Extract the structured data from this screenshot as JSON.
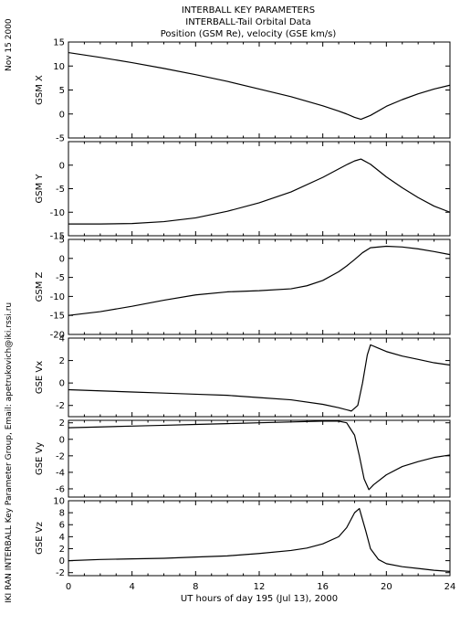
{
  "header": {
    "line1": "INTERBALL KEY PARAMETERS",
    "line2": "INTERBALL-Tail Orbital Data",
    "line3": "Position (GSM Re), velocity (GSE km/s)"
  },
  "side_date": "Nov 15 2000",
  "side_credit": "IKI RAN INTERBALL Key Parameter Group, Email: apetrukovich@iki.rssi.ru",
  "xlabel": "UT hours of day 195 (Jul 13), 2000",
  "colors": {
    "line": "#000000",
    "axis": "#000000",
    "background": "#ffffff"
  },
  "chart_data": [
    {
      "type": "line",
      "ylabel": "GSM X",
      "xlim": [
        0,
        24
      ],
      "ylim": [
        -5,
        15
      ],
      "yticks": [
        -5,
        0,
        5,
        10,
        15
      ],
      "x": [
        0,
        2,
        4,
        6,
        8,
        10,
        12,
        14,
        16,
        17,
        17.5,
        18,
        18.4,
        19,
        20,
        21,
        22,
        23,
        24
      ],
      "y": [
        12.8,
        11.8,
        10.7,
        9.5,
        8.2,
        6.8,
        5.2,
        3.6,
        1.7,
        0.6,
        0.0,
        -0.7,
        -1.1,
        -0.3,
        1.6,
        3.0,
        4.2,
        5.2,
        6.0
      ]
    },
    {
      "type": "line",
      "ylabel": "GSM Y",
      "xlim": [
        0,
        24
      ],
      "ylim": [
        -15,
        5
      ],
      "yticks": [
        -15,
        -10,
        -5,
        0
      ],
      "x": [
        0,
        2,
        4,
        6,
        8,
        10,
        12,
        14,
        16,
        17,
        17.5,
        18,
        18.4,
        19,
        20,
        21,
        22,
        23,
        24
      ],
      "y": [
        -12.5,
        -12.5,
        -12.4,
        -12.0,
        -11.2,
        -9.8,
        -8.0,
        -5.7,
        -2.6,
        -0.8,
        0.1,
        0.9,
        1.3,
        0.2,
        -2.5,
        -4.8,
        -6.9,
        -8.7,
        -10.0
      ]
    },
    {
      "type": "line",
      "ylabel": "GSM Z",
      "xlim": [
        0,
        24
      ],
      "ylim": [
        -20,
        5
      ],
      "yticks": [
        -20,
        -15,
        -10,
        -5,
        0,
        5
      ],
      "x": [
        0,
        2,
        4,
        6,
        8,
        10,
        12,
        14,
        15,
        16,
        17,
        17.5,
        18,
        18.5,
        19,
        20,
        21,
        22,
        23,
        24
      ],
      "y": [
        -15.0,
        -14.0,
        -12.6,
        -11.0,
        -9.6,
        -8.8,
        -8.5,
        -8.0,
        -7.2,
        -5.8,
        -3.5,
        -2.0,
        -0.3,
        1.5,
        2.8,
        3.2,
        3.0,
        2.5,
        1.8,
        1.0
      ]
    },
    {
      "type": "line",
      "ylabel": "GSE Vx",
      "xlim": [
        0,
        24
      ],
      "ylim": [
        -3,
        4
      ],
      "yticks": [
        -2,
        0,
        2,
        4
      ],
      "x": [
        0,
        2,
        4,
        6,
        8,
        10,
        12,
        14,
        16,
        17,
        17.8,
        18.2,
        18.5,
        18.8,
        19.0,
        19.5,
        20,
        21,
        22,
        23,
        24
      ],
      "y": [
        -0.6,
        -0.7,
        -0.8,
        -0.9,
        -1.0,
        -1.1,
        -1.3,
        -1.5,
        -1.9,
        -2.2,
        -2.5,
        -2.0,
        0.0,
        2.5,
        3.4,
        3.1,
        2.8,
        2.4,
        2.1,
        1.8,
        1.6
      ]
    },
    {
      "type": "line",
      "ylabel": "GSE Vy",
      "xlim": [
        0,
        24
      ],
      "ylim": [
        -7,
        2.3
      ],
      "yticks": [
        -6,
        -4,
        -2,
        0,
        2
      ],
      "x": [
        0,
        2,
        4,
        6,
        8,
        10,
        12,
        14,
        16,
        17,
        17.5,
        18,
        18.3,
        18.6,
        18.9,
        19.2,
        20,
        21,
        22,
        23,
        24
      ],
      "y": [
        1.4,
        1.5,
        1.6,
        1.7,
        1.8,
        1.9,
        2.0,
        2.1,
        2.2,
        2.2,
        2.0,
        0.5,
        -2.0,
        -4.8,
        -6.1,
        -5.5,
        -4.3,
        -3.3,
        -2.7,
        -2.2,
        -1.9
      ]
    },
    {
      "type": "line",
      "ylabel": "GSE Vz",
      "xlim": [
        0,
        24
      ],
      "ylim": [
        -2.5,
        10
      ],
      "yticks": [
        -2,
        0,
        2,
        4,
        6,
        8,
        10
      ],
      "x": [
        0,
        2,
        4,
        6,
        8,
        10,
        12,
        14,
        15,
        16,
        17,
        17.5,
        18,
        18.3,
        18.7,
        19,
        19.5,
        20,
        21,
        22,
        23,
        24
      ],
      "y": [
        0.0,
        0.2,
        0.3,
        0.4,
        0.6,
        0.8,
        1.2,
        1.7,
        2.1,
        2.8,
        4.0,
        5.5,
        8.0,
        8.7,
        5.0,
        2.0,
        0.2,
        -0.5,
        -1.0,
        -1.3,
        -1.6,
        -1.8
      ]
    }
  ],
  "xticks": [
    0,
    4,
    8,
    12,
    16,
    20,
    24
  ]
}
